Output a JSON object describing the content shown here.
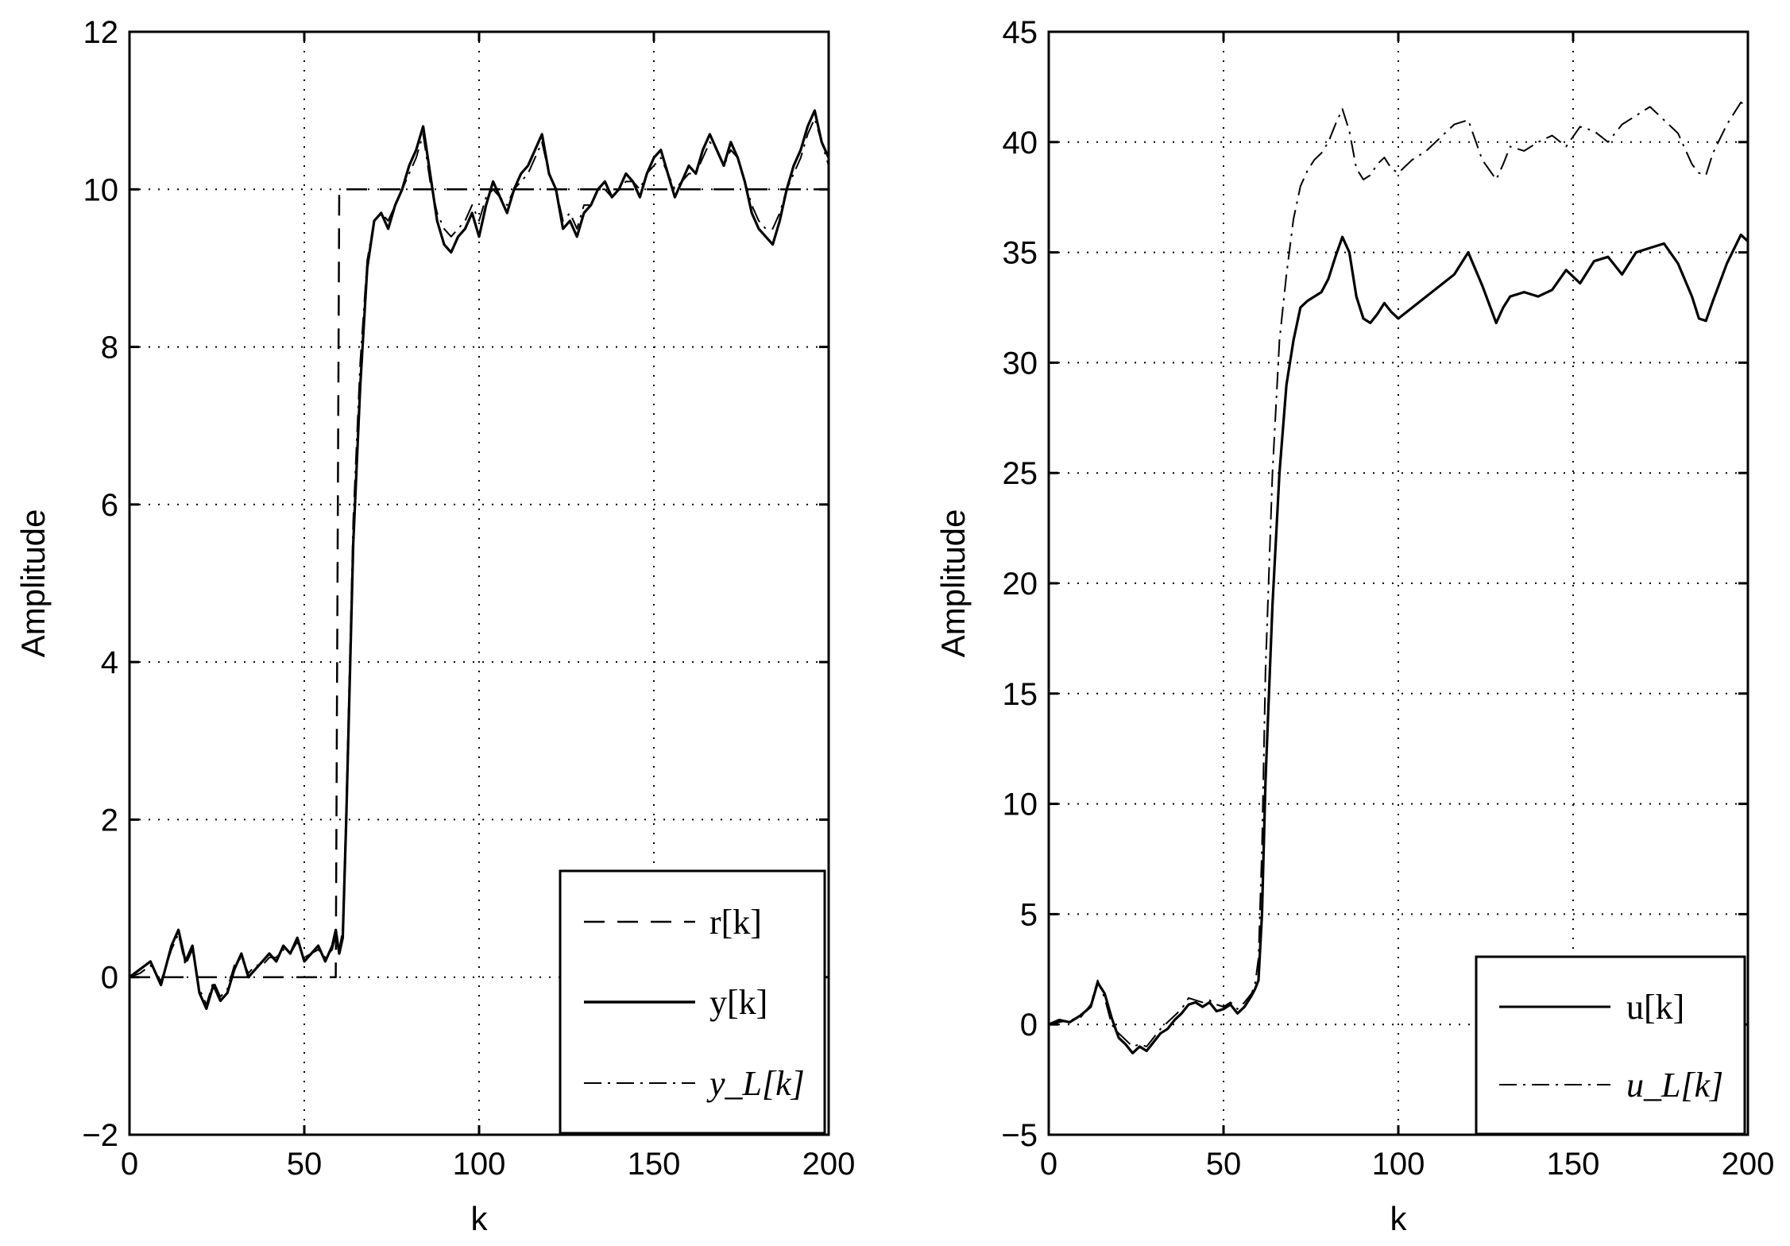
{
  "chart_data": [
    {
      "type": "line",
      "xlabel": "k",
      "ylabel": "Amplitude",
      "xlim": [
        0,
        200
      ],
      "ylim": [
        -2,
        12
      ],
      "xticks": [
        0,
        50,
        100,
        150,
        200
      ],
      "yticks": [
        -2,
        0,
        2,
        4,
        6,
        8,
        10,
        12
      ],
      "xtick_labels": [
        "0",
        "50",
        "100",
        "150",
        "200"
      ],
      "ytick_labels": [
        "−2",
        "0",
        "2",
        "4",
        "6",
        "8",
        "10",
        "12"
      ],
      "grid": true,
      "legend_position": "bottom-right",
      "series": [
        {
          "name": "r[k]",
          "style": "dashed",
          "x": [
            0,
            59,
            60,
            200
          ],
          "y": [
            0,
            0,
            10,
            10
          ]
        },
        {
          "name": "y[k]",
          "style": "solid",
          "x": [
            0,
            3,
            6,
            9,
            12,
            14,
            16,
            18,
            20,
            22,
            24,
            26,
            28,
            30,
            32,
            34,
            36,
            38,
            40,
            42,
            44,
            46,
            48,
            50,
            52,
            54,
            56,
            58,
            59,
            60,
            61,
            62,
            64,
            66,
            68,
            70,
            72,
            74,
            76,
            78,
            80,
            82,
            84,
            86,
            88,
            90,
            92,
            94,
            96,
            98,
            100,
            102,
            104,
            106,
            108,
            110,
            112,
            114,
            116,
            118,
            120,
            122,
            124,
            126,
            128,
            130,
            132,
            134,
            136,
            138,
            140,
            142,
            144,
            146,
            148,
            150,
            152,
            154,
            156,
            158,
            160,
            162,
            164,
            166,
            168,
            170,
            172,
            174,
            176,
            178,
            180,
            182,
            184,
            186,
            188,
            190,
            192,
            194,
            196,
            198,
            200
          ],
          "y": [
            0.0,
            0.1,
            0.2,
            -0.1,
            0.4,
            0.6,
            0.2,
            0.4,
            -0.2,
            -0.4,
            -0.1,
            -0.3,
            -0.2,
            0.1,
            0.3,
            0.0,
            0.1,
            0.2,
            0.3,
            0.2,
            0.4,
            0.3,
            0.5,
            0.2,
            0.3,
            0.4,
            0.2,
            0.4,
            0.6,
            0.3,
            0.5,
            2.0,
            5.5,
            7.5,
            9.0,
            9.6,
            9.7,
            9.5,
            9.8,
            10.0,
            10.3,
            10.5,
            10.8,
            10.2,
            9.6,
            9.3,
            9.2,
            9.4,
            9.5,
            9.7,
            9.4,
            9.8,
            10.1,
            9.9,
            9.7,
            10.0,
            10.2,
            10.3,
            10.5,
            10.7,
            10.2,
            10.0,
            9.5,
            9.6,
            9.4,
            9.7,
            9.8,
            10.0,
            10.1,
            9.9,
            10.0,
            10.2,
            10.1,
            9.9,
            10.2,
            10.4,
            10.5,
            10.2,
            9.9,
            10.1,
            10.3,
            10.2,
            10.5,
            10.7,
            10.5,
            10.3,
            10.6,
            10.4,
            10.1,
            9.7,
            9.5,
            9.4,
            9.3,
            9.6,
            10.0,
            10.3,
            10.5,
            10.8,
            11.0,
            10.6,
            10.4
          ]
        },
        {
          "name": "y_L[k]",
          "style": "dashdot",
          "x": [
            0,
            3,
            6,
            9,
            12,
            14,
            16,
            18,
            20,
            22,
            24,
            26,
            28,
            30,
            32,
            34,
            36,
            38,
            40,
            42,
            44,
            46,
            48,
            50,
            52,
            54,
            56,
            58,
            59,
            60,
            61,
            62,
            64,
            66,
            68,
            70,
            72,
            74,
            76,
            78,
            80,
            82,
            84,
            86,
            88,
            90,
            92,
            94,
            96,
            98,
            100,
            102,
            104,
            106,
            108,
            110,
            112,
            114,
            116,
            118,
            120,
            122,
            124,
            126,
            128,
            130,
            132,
            134,
            136,
            138,
            140,
            142,
            144,
            146,
            148,
            150,
            152,
            154,
            156,
            158,
            160,
            162,
            164,
            166,
            168,
            170,
            172,
            174,
            176,
            178,
            180,
            182,
            184,
            186,
            188,
            190,
            192,
            194,
            196,
            198,
            200
          ],
          "y": [
            0.0,
            0.05,
            0.15,
            -0.05,
            0.35,
            0.55,
            0.15,
            0.35,
            -0.15,
            -0.35,
            -0.05,
            -0.25,
            -0.15,
            0.15,
            0.25,
            0.05,
            0.15,
            0.15,
            0.25,
            0.25,
            0.35,
            0.3,
            0.45,
            0.25,
            0.3,
            0.35,
            0.25,
            0.35,
            0.55,
            0.35,
            0.6,
            2.2,
            5.8,
            7.8,
            9.1,
            9.6,
            9.7,
            9.6,
            9.8,
            10.0,
            10.2,
            10.4,
            10.7,
            10.1,
            9.7,
            9.5,
            9.4,
            9.5,
            9.6,
            9.8,
            9.6,
            9.9,
            10.0,
            9.9,
            9.8,
            10.0,
            10.1,
            10.2,
            10.4,
            10.6,
            10.2,
            10.0,
            9.6,
            9.7,
            9.5,
            9.8,
            9.8,
            10.0,
            10.0,
            9.9,
            10.0,
            10.1,
            10.1,
            10.0,
            10.2,
            10.3,
            10.4,
            10.2,
            10.0,
            10.1,
            10.2,
            10.2,
            10.4,
            10.6,
            10.5,
            10.3,
            10.5,
            10.4,
            10.1,
            9.8,
            9.6,
            9.5,
            9.5,
            9.7,
            10.0,
            10.2,
            10.4,
            10.7,
            10.9,
            10.6,
            10.3
          ]
        }
      ]
    },
    {
      "type": "line",
      "xlabel": "k",
      "ylabel": "Amplitude",
      "xlim": [
        0,
        200
      ],
      "ylim": [
        -5,
        45
      ],
      "xticks": [
        0,
        50,
        100,
        150,
        200
      ],
      "yticks": [
        -5,
        0,
        5,
        10,
        15,
        20,
        25,
        30,
        35,
        40,
        45
      ],
      "xtick_labels": [
        "0",
        "50",
        "100",
        "150",
        "200"
      ],
      "ytick_labels": [
        "−5",
        "0",
        "5",
        "10",
        "15",
        "20",
        "25",
        "30",
        "35",
        "40",
        "45"
      ],
      "grid": true,
      "legend_position": "bottom-right",
      "series": [
        {
          "name": "u[k]",
          "style": "solid",
          "x": [
            0,
            3,
            6,
            9,
            12,
            14,
            16,
            18,
            20,
            22,
            24,
            26,
            28,
            30,
            32,
            34,
            36,
            38,
            40,
            42,
            44,
            46,
            48,
            50,
            52,
            54,
            56,
            58,
            59,
            60,
            61,
            62,
            64,
            66,
            68,
            70,
            72,
            74,
            76,
            78,
            80,
            82,
            84,
            86,
            88,
            90,
            92,
            94,
            96,
            98,
            100,
            104,
            108,
            112,
            116,
            120,
            124,
            128,
            130,
            132,
            136,
            140,
            144,
            148,
            152,
            156,
            160,
            164,
            168,
            172,
            176,
            180,
            184,
            186,
            188,
            190,
            194,
            198,
            200
          ],
          "y": [
            0.0,
            0.2,
            0.1,
            0.4,
            0.8,
            1.9,
            1.4,
            0.3,
            -0.6,
            -0.9,
            -1.3,
            -1.0,
            -1.2,
            -0.8,
            -0.4,
            -0.2,
            0.2,
            0.5,
            0.9,
            1.0,
            0.8,
            1.0,
            0.6,
            0.7,
            0.9,
            0.5,
            0.8,
            1.3,
            1.6,
            2.0,
            5.0,
            11.0,
            19.0,
            25.0,
            29.0,
            31.0,
            32.5,
            32.8,
            33.0,
            33.2,
            33.8,
            34.8,
            35.7,
            35.0,
            33.0,
            32.0,
            31.8,
            32.2,
            32.7,
            32.3,
            32.0,
            32.5,
            33.0,
            33.5,
            34.0,
            35.0,
            33.5,
            31.8,
            32.5,
            33.0,
            33.2,
            33.0,
            33.3,
            34.2,
            33.6,
            34.6,
            34.8,
            34.0,
            35.0,
            35.2,
            35.4,
            34.5,
            33.0,
            32.0,
            31.9,
            32.8,
            34.5,
            35.8,
            35.5
          ]
        },
        {
          "name": "u_L[k]",
          "style": "dashdot",
          "x": [
            0,
            3,
            6,
            9,
            12,
            14,
            16,
            18,
            20,
            22,
            24,
            26,
            28,
            30,
            32,
            34,
            36,
            38,
            40,
            42,
            44,
            46,
            48,
            50,
            52,
            54,
            56,
            58,
            59,
            60,
            61,
            62,
            64,
            66,
            68,
            70,
            72,
            74,
            76,
            78,
            80,
            82,
            84,
            86,
            88,
            90,
            92,
            94,
            96,
            98,
            100,
            104,
            108,
            112,
            116,
            120,
            124,
            128,
            130,
            132,
            136,
            140,
            144,
            148,
            152,
            156,
            160,
            164,
            168,
            172,
            176,
            180,
            184,
            186,
            188,
            190,
            194,
            198,
            200
          ],
          "y": [
            0.0,
            0.1,
            0.2,
            0.3,
            0.9,
            2.0,
            1.2,
            0.0,
            -0.4,
            -0.7,
            -1.0,
            -0.9,
            -1.0,
            -0.6,
            -0.2,
            0.1,
            0.4,
            0.7,
            1.2,
            1.1,
            1.0,
            1.1,
            0.9,
            0.8,
            1.0,
            0.7,
            1.0,
            1.4,
            1.8,
            3.0,
            8.0,
            16.0,
            25.0,
            31.0,
            34.0,
            36.5,
            38.0,
            38.7,
            39.2,
            39.5,
            40.0,
            40.8,
            41.5,
            40.5,
            38.8,
            38.3,
            38.5,
            39.0,
            39.3,
            38.8,
            38.6,
            39.2,
            39.6,
            40.2,
            40.8,
            41.0,
            39.2,
            38.3,
            39.0,
            39.8,
            39.6,
            40.0,
            40.3,
            39.8,
            40.7,
            40.5,
            40.0,
            40.8,
            41.2,
            41.6,
            41.0,
            40.4,
            39.0,
            38.6,
            38.5,
            39.5,
            40.8,
            41.8,
            41.6
          ]
        }
      ]
    }
  ]
}
